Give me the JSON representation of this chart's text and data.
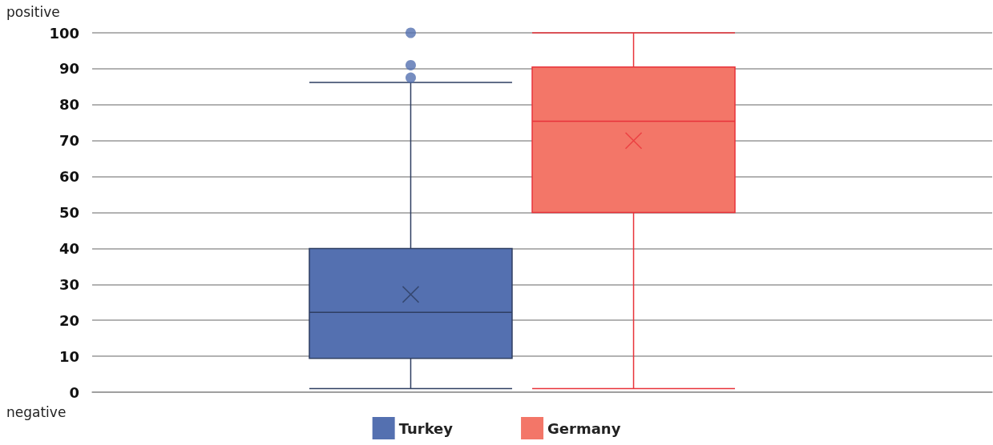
{
  "chart_data": {
    "type": "box",
    "categories": [
      null
    ],
    "series": [
      {
        "name": "Turkey",
        "color": "#5470b0",
        "boxes": [
          {
            "low": 1,
            "q1": 9.4,
            "median": 22.2,
            "q3": 40,
            "high": 86.2,
            "mean": 27.2,
            "outliers": [
              87.5,
              91,
              100
            ]
          }
        ]
      },
      {
        "name": "Germany",
        "color": "#f37668",
        "boxes": [
          {
            "low": 1,
            "q1": 50,
            "median": 75.4,
            "q3": 90.5,
            "high": 100,
            "mean": 70
          }
        ]
      }
    ],
    "ylim": [
      0,
      100
    ],
    "yticks": [
      0,
      10,
      20,
      30,
      40,
      50,
      60,
      70,
      80,
      90,
      100
    ],
    "annotations": [
      "positive",
      "negative"
    ],
    "grid": "y",
    "legend": "bottom"
  }
}
